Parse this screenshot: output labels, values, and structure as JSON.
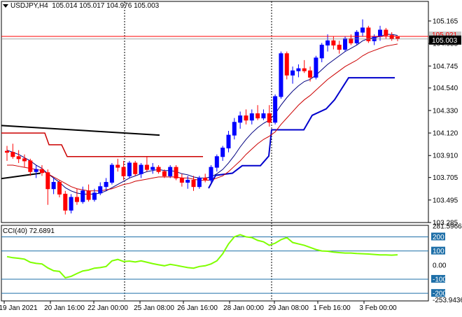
{
  "header": {
    "symbol_timeframe": "USDJPY,H4",
    "ohlc": "105.014 105.017 104.976 105.003"
  },
  "cci": {
    "label": "CCI(40) 72.6891",
    "max_label": "281.5966",
    "min_label": "-253.9436",
    "levels": [
      "200",
      "100",
      "0.00",
      "-100",
      "-200"
    ]
  },
  "colors": {
    "bull": "#0000ff",
    "bear": "#ff0000",
    "price_hl": "#ff0000",
    "price_tag_bg": "#000000",
    "cci_line": "#7fff00",
    "cci_level": "#1e6fa8",
    "grid": "#000000"
  },
  "chart_data": [
    {
      "type": "candlestick",
      "title": "USDJPY,H4",
      "ylim": [
        103.285,
        105.23
      ],
      "y_ticks": [
        "105.165",
        "104.955",
        "104.745",
        "104.540",
        "104.330",
        "104.120",
        "103.910",
        "103.705",
        "103.495",
        "103.285"
      ],
      "x_ticks": [
        "19 Jan 2021",
        "20 Jan 16:00",
        "22 Jan 00:00",
        "25 Jan 08:00",
        "26 Jan 16:00",
        "28 Jan 00:00",
        "29 Jan 08:00",
        "1 Feb 16:00",
        "3 Feb 00:00"
      ],
      "current_price": "105.003",
      "price_tag": "105.021",
      "candles": [
        {
          "o": 103.95,
          "h": 104.0,
          "l": 103.86,
          "c": 103.94
        },
        {
          "o": 103.94,
          "h": 104.02,
          "l": 103.88,
          "c": 103.9
        },
        {
          "o": 103.9,
          "h": 103.96,
          "l": 103.84,
          "c": 103.88
        },
        {
          "o": 103.88,
          "h": 103.92,
          "l": 103.8,
          "c": 103.86
        },
        {
          "o": 103.86,
          "h": 103.88,
          "l": 103.72,
          "c": 103.76
        },
        {
          "o": 103.76,
          "h": 103.82,
          "l": 103.7,
          "c": 103.78
        },
        {
          "o": 103.78,
          "h": 103.82,
          "l": 103.72,
          "c": 103.75
        },
        {
          "o": 103.75,
          "h": 103.78,
          "l": 103.45,
          "c": 103.6
        },
        {
          "o": 103.6,
          "h": 103.7,
          "l": 103.55,
          "c": 103.66
        },
        {
          "o": 103.66,
          "h": 103.68,
          "l": 103.52,
          "c": 103.55
        },
        {
          "o": 103.55,
          "h": 103.58,
          "l": 103.36,
          "c": 103.4
        },
        {
          "o": 103.4,
          "h": 103.55,
          "l": 103.37,
          "c": 103.52
        },
        {
          "o": 103.52,
          "h": 103.6,
          "l": 103.45,
          "c": 103.48
        },
        {
          "o": 103.48,
          "h": 103.62,
          "l": 103.46,
          "c": 103.58
        },
        {
          "o": 103.58,
          "h": 103.64,
          "l": 103.48,
          "c": 103.5
        },
        {
          "o": 103.5,
          "h": 103.6,
          "l": 103.48,
          "c": 103.56
        },
        {
          "o": 103.56,
          "h": 103.66,
          "l": 103.54,
          "c": 103.62
        },
        {
          "o": 103.62,
          "h": 103.7,
          "l": 103.58,
          "c": 103.66
        },
        {
          "o": 103.66,
          "h": 103.84,
          "l": 103.64,
          "c": 103.82
        },
        {
          "o": 103.82,
          "h": 103.88,
          "l": 103.76,
          "c": 103.8
        },
        {
          "o": 103.8,
          "h": 103.86,
          "l": 103.68,
          "c": 103.72
        },
        {
          "o": 103.72,
          "h": 103.86,
          "l": 103.7,
          "c": 103.84
        },
        {
          "o": 103.84,
          "h": 103.86,
          "l": 103.72,
          "c": 103.74
        },
        {
          "o": 103.74,
          "h": 103.84,
          "l": 103.7,
          "c": 103.82
        },
        {
          "o": 103.82,
          "h": 103.9,
          "l": 103.76,
          "c": 103.78
        },
        {
          "o": 103.78,
          "h": 103.84,
          "l": 103.74,
          "c": 103.8
        },
        {
          "o": 103.8,
          "h": 103.82,
          "l": 103.74,
          "c": 103.76
        },
        {
          "o": 103.76,
          "h": 103.78,
          "l": 103.7,
          "c": 103.72
        },
        {
          "o": 103.72,
          "h": 103.82,
          "l": 103.7,
          "c": 103.8
        },
        {
          "o": 103.8,
          "h": 103.82,
          "l": 103.68,
          "c": 103.7
        },
        {
          "o": 103.7,
          "h": 103.74,
          "l": 103.62,
          "c": 103.66
        },
        {
          "o": 103.66,
          "h": 103.72,
          "l": 103.6,
          "c": 103.68
        },
        {
          "o": 103.68,
          "h": 103.72,
          "l": 103.58,
          "c": 103.62
        },
        {
          "o": 103.62,
          "h": 103.72,
          "l": 103.6,
          "c": 103.7
        },
        {
          "o": 103.7,
          "h": 103.74,
          "l": 103.66,
          "c": 103.68
        },
        {
          "o": 103.68,
          "h": 103.82,
          "l": 103.66,
          "c": 103.8
        },
        {
          "o": 103.8,
          "h": 103.92,
          "l": 103.76,
          "c": 103.9
        },
        {
          "o": 103.9,
          "h": 104.0,
          "l": 103.86,
          "c": 103.98
        },
        {
          "o": 103.98,
          "h": 104.14,
          "l": 103.94,
          "c": 104.1
        },
        {
          "o": 104.1,
          "h": 104.26,
          "l": 104.06,
          "c": 104.22
        },
        {
          "o": 104.22,
          "h": 104.32,
          "l": 104.16,
          "c": 104.28
        },
        {
          "o": 104.28,
          "h": 104.34,
          "l": 104.2,
          "c": 104.24
        },
        {
          "o": 104.24,
          "h": 104.34,
          "l": 104.2,
          "c": 104.3
        },
        {
          "o": 104.3,
          "h": 104.38,
          "l": 104.24,
          "c": 104.26
        },
        {
          "o": 104.26,
          "h": 104.34,
          "l": 104.24,
          "c": 104.3
        },
        {
          "o": 104.3,
          "h": 104.38,
          "l": 104.18,
          "c": 104.22
        },
        {
          "o": 104.22,
          "h": 104.48,
          "l": 104.2,
          "c": 104.46
        },
        {
          "o": 104.46,
          "h": 104.88,
          "l": 104.44,
          "c": 104.86
        },
        {
          "o": 104.86,
          "h": 104.88,
          "l": 104.62,
          "c": 104.66
        },
        {
          "o": 104.66,
          "h": 104.74,
          "l": 104.58,
          "c": 104.7
        },
        {
          "o": 104.7,
          "h": 104.76,
          "l": 104.64,
          "c": 104.72
        },
        {
          "o": 104.72,
          "h": 104.8,
          "l": 104.68,
          "c": 104.7
        },
        {
          "o": 104.7,
          "h": 104.74,
          "l": 104.6,
          "c": 104.64
        },
        {
          "o": 104.64,
          "h": 104.84,
          "l": 104.62,
          "c": 104.82
        },
        {
          "o": 104.82,
          "h": 104.96,
          "l": 104.78,
          "c": 104.94
        },
        {
          "o": 104.94,
          "h": 105.04,
          "l": 104.88,
          "c": 104.98
        },
        {
          "o": 104.98,
          "h": 105.02,
          "l": 104.9,
          "c": 104.94
        },
        {
          "o": 104.94,
          "h": 104.98,
          "l": 104.86,
          "c": 104.9
        },
        {
          "o": 104.9,
          "h": 105.02,
          "l": 104.88,
          "c": 105.0
        },
        {
          "o": 105.0,
          "h": 105.04,
          "l": 104.94,
          "c": 104.96
        },
        {
          "o": 104.96,
          "h": 105.08,
          "l": 104.94,
          "c": 105.06
        },
        {
          "o": 105.06,
          "h": 105.18,
          "l": 105.02,
          "c": 105.1
        },
        {
          "o": 105.1,
          "h": 105.12,
          "l": 104.96,
          "c": 104.98
        },
        {
          "o": 104.98,
          "h": 105.04,
          "l": 104.94,
          "c": 105.02
        },
        {
          "o": 105.02,
          "h": 105.12,
          "l": 104.98,
          "c": 105.08
        },
        {
          "o": 105.08,
          "h": 105.1,
          "l": 105.0,
          "c": 105.03
        },
        {
          "o": 105.03,
          "h": 105.06,
          "l": 104.98,
          "c": 105.0
        },
        {
          "o": 105.014,
          "h": 105.017,
          "l": 104.976,
          "c": 105.003
        }
      ],
      "series": [
        {
          "type": "line",
          "color": "#000080",
          "values": [
            103.96,
            103.94,
            103.92,
            103.89,
            103.86,
            103.82,
            103.79,
            103.74,
            103.7,
            103.66,
            103.61,
            103.58,
            103.56,
            103.55,
            103.55,
            103.55,
            103.56,
            103.58,
            103.61,
            103.64,
            103.67,
            103.7,
            103.72,
            103.74,
            103.76,
            103.77,
            103.78,
            103.77,
            103.77,
            103.76,
            103.74,
            103.73,
            103.71,
            103.7,
            103.7,
            103.71,
            103.74,
            103.78,
            103.84,
            103.91,
            103.99,
            104.06,
            104.12,
            104.17,
            104.21,
            104.24,
            104.3,
            104.38,
            104.45,
            104.51,
            104.56,
            104.6,
            104.62,
            104.66,
            104.71,
            104.76,
            104.8,
            104.84,
            104.88,
            104.91,
            104.94,
            104.98,
            105.0,
            105.01,
            105.02,
            105.04,
            105.04,
            105.03
          ]
        },
        {
          "type": "line",
          "color": "#cc0000",
          "values": [
            103.82,
            103.82,
            103.81,
            103.8,
            103.79,
            103.78,
            103.77,
            103.74,
            103.71,
            103.68,
            103.65,
            103.62,
            103.6,
            103.59,
            103.58,
            103.58,
            103.58,
            103.59,
            103.6,
            103.62,
            103.64,
            103.65,
            103.67,
            103.68,
            103.69,
            103.7,
            103.71,
            103.71,
            103.71,
            103.71,
            103.7,
            103.7,
            103.69,
            103.68,
            103.68,
            103.68,
            103.7,
            103.72,
            103.76,
            103.81,
            103.86,
            103.92,
            103.97,
            104.02,
            104.06,
            104.09,
            104.13,
            104.2,
            104.26,
            104.32,
            104.38,
            104.43,
            104.47,
            104.52,
            104.57,
            104.62,
            104.66,
            104.7,
            104.74,
            104.77,
            104.8,
            104.84,
            104.87,
            104.89,
            104.91,
            104.93,
            104.94,
            104.95
          ]
        }
      ]
    },
    {
      "type": "line",
      "title": "CCI(40) 72.6891",
      "ylim": [
        -253.9436,
        281.5966
      ],
      "series": [
        {
          "name": "CCI(40)",
          "values": [
            60,
            52,
            48,
            42,
            20,
            12,
            8,
            -20,
            -40,
            -45,
            -90,
            -80,
            -60,
            -42,
            -35,
            -22,
            -18,
            -10,
            30,
            40,
            25,
            28,
            22,
            30,
            20,
            10,
            2,
            -5,
            5,
            -2,
            -10,
            -18,
            -22,
            -10,
            -5,
            8,
            30,
            80,
            150,
            200,
            215,
            200,
            195,
            175,
            165,
            140,
            155,
            180,
            195,
            160,
            150,
            140,
            125,
            110,
            100,
            98,
            92,
            88,
            85,
            85,
            82,
            80,
            78,
            75,
            72,
            72,
            70,
            72.6891
          ]
        }
      ]
    }
  ]
}
